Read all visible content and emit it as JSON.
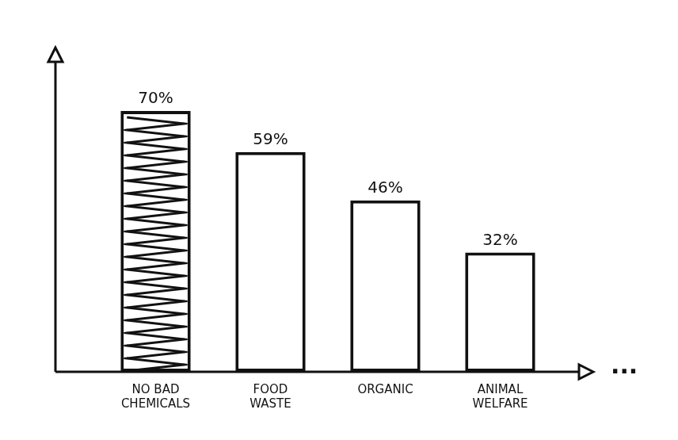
{
  "chart_data": {
    "type": "bar",
    "categories": [
      "NO BAD CHEMICALS",
      "FOOD WASTE",
      "ORGANIC",
      "ANIMAL WELFARE"
    ],
    "values": [
      70,
      59,
      46,
      32
    ],
    "value_labels": [
      "70%",
      "59%",
      "46%",
      "32%"
    ],
    "colors": [
      "#111111",
      "#ffffff",
      "#ffffff",
      "#ffffff"
    ],
    "ylim": [
      0,
      87
    ],
    "grid": false,
    "data_labels": true,
    "tick_labels": "x",
    "annotations": [
      "..."
    ]
  }
}
